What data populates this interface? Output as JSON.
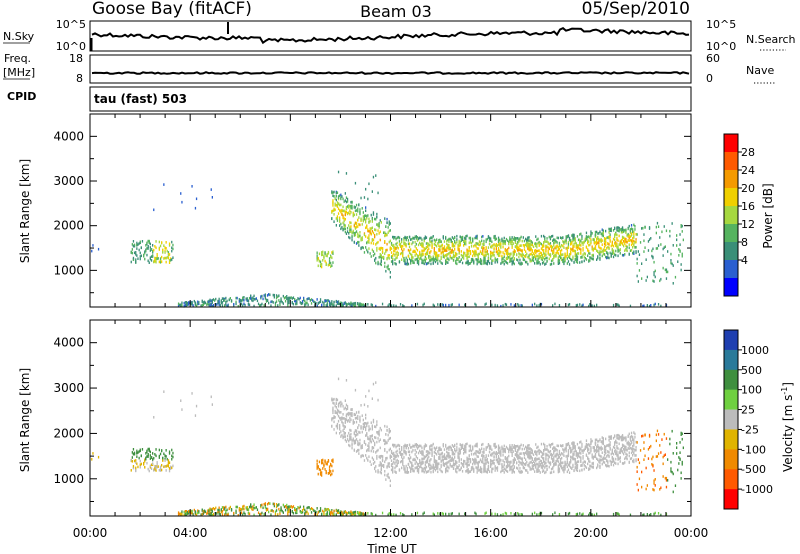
{
  "header": {
    "station": "Goose Bay (fitACF)",
    "beam": "Beam 03",
    "date": "05/Sep/2010"
  },
  "top_panels": {
    "nsky_label": "N.Sky",
    "nsky_ticks": [
      "10^5",
      "10^0"
    ],
    "nsearch_label": "N.Search",
    "nsearch_ticks": [
      "10^5",
      "10^0"
    ],
    "freq_label_1": "Freq.",
    "freq_label_2": "[MHz]",
    "freq_ticks": [
      "18",
      "8"
    ],
    "nave_label": "Nave",
    "nave_ticks": [
      "60",
      "0"
    ],
    "cpid_label": "CPID",
    "cpid_value": "tau (fast) 503"
  },
  "chart_data": [
    {
      "type": "heatmap",
      "name": "power",
      "ylabel": "Slant Range [km]",
      "yticks": [
        "4000",
        "3000",
        "2000",
        "1000"
      ],
      "ylim": [
        180,
        4500
      ],
      "xlim": [
        "00:00",
        "24:00"
      ],
      "colorbar_label": "Power [dB]",
      "colorbar_ticks": [
        "28",
        "24",
        "20",
        "16",
        "12",
        "8",
        "4"
      ],
      "colorbar_colors": [
        "#ff0000",
        "#ff5a00",
        "#f59a00",
        "#f0d000",
        "#a6d840",
        "#55b35f",
        "#3a8f78",
        "#2a5fd0",
        "#0000ff"
      ],
      "features": [
        {
          "time": "00:30",
          "range_km": 1500,
          "power_db": 8
        },
        {
          "time": "02:30",
          "range_km": 1400,
          "power_db": 14
        },
        {
          "time": "03:00",
          "range_km": 1350,
          "power_db": 20
        },
        {
          "time": "09:30",
          "range_km": 1200,
          "power_db": 18
        },
        {
          "time": "10:00",
          "range_km": 2200,
          "power_db": 14
        },
        {
          "time": "11:30",
          "range_km": 1600,
          "power_db": 22
        },
        {
          "time": "14:00",
          "range_km": 1450,
          "power_db": 20
        },
        {
          "time": "17:00",
          "range_km": 1450,
          "power_db": 20
        },
        {
          "time": "20:00",
          "range_km": 1600,
          "power_db": 20
        },
        {
          "time": "22:30",
          "range_km": 1000,
          "power_db": 10
        },
        {
          "time": "06:00",
          "range_km": 300,
          "power_db": 8
        }
      ]
    },
    {
      "type": "heatmap",
      "name": "velocity",
      "ylabel": "Slant Range [km]",
      "yticks": [
        "4000",
        "3000",
        "2000",
        "1000"
      ],
      "ylim": [
        180,
        4500
      ],
      "xlabel": "Time UT",
      "xticks": [
        "00:00",
        "04:00",
        "08:00",
        "12:00",
        "16:00",
        "20:00",
        "00:00"
      ],
      "colorbar_label": "Velocity [m s",
      "colorbar_label_sup": "-1",
      "colorbar_label_end": "]",
      "colorbar_ticks": [
        "1000",
        "500",
        "100",
        "25",
        "-25",
        "-100",
        "-500",
        "-1000"
      ],
      "colorbar_colors": [
        "#1f3fb0",
        "#2a7a9a",
        "#3f8f3f",
        "#6fd040",
        "#bcbcbc",
        "#e0b400",
        "#f08a00",
        "#ff5a00",
        "#ff0000"
      ],
      "features": [
        {
          "time": "02:30",
          "range_km": 1500,
          "velocity": 100
        },
        {
          "time": "09:30",
          "range_km": 1200,
          "velocity": -500
        },
        {
          "time": "12:00",
          "range_km": 1500,
          "velocity": 0
        },
        {
          "time": "16:00",
          "range_km": 1450,
          "velocity": 0
        },
        {
          "time": "22:30",
          "range_km": 1200,
          "velocity": -500
        },
        {
          "time": "23:30",
          "range_km": 1200,
          "velocity": 100
        }
      ]
    }
  ]
}
